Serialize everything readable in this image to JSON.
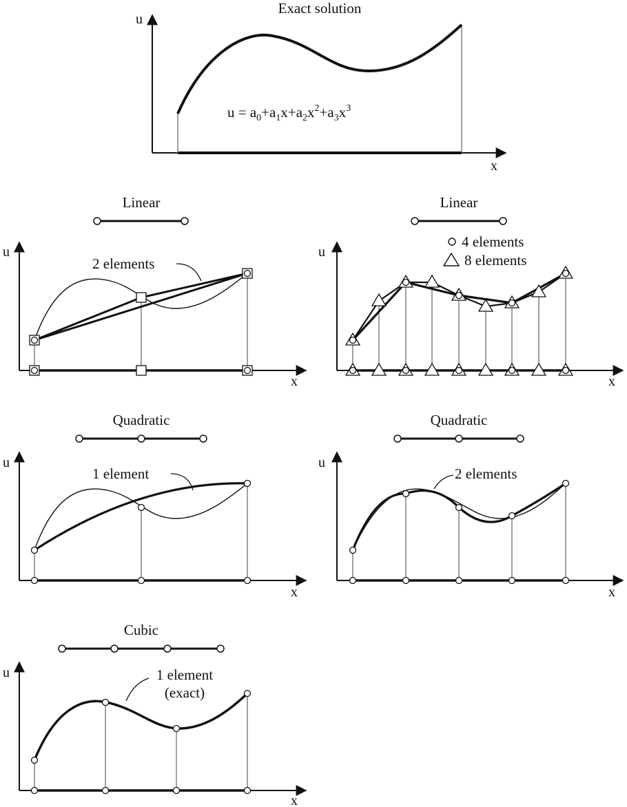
{
  "top": {
    "title": "Exact solution",
    "u_label": "u",
    "x_label": "x",
    "eq": {
      "u": "u",
      "eqsign": " = ",
      "t0": "a",
      "s0": "0",
      "p1": "+",
      "t1": "a",
      "s1": "1",
      "x1": "x",
      "p2": "+",
      "t2": "a",
      "s2": "2",
      "x2": "x",
      "e2": "2",
      "p3": "+",
      "t3": "a",
      "s3": "3",
      "x3": "x",
      "e3": "3"
    }
  },
  "linear_left": {
    "title": "Linear",
    "annotation": "2 elements",
    "u_label": "u",
    "x_label": "x"
  },
  "linear_right": {
    "title": "Linear",
    "legend_circle": "4 elements",
    "legend_triangle": "8 elements",
    "u_label": "u",
    "x_label": "x"
  },
  "quad_left": {
    "title": "Quadratic",
    "annotation": "1 element",
    "u_label": "u",
    "x_label": "x"
  },
  "quad_right": {
    "title": "Quadratic",
    "annotation": "2 elements",
    "u_label": "u",
    "x_label": "x"
  },
  "cubic": {
    "title": "Cubic",
    "annotation_line1": "1 element",
    "annotation_line2": "(exact)",
    "u_label": "u",
    "x_label": "x"
  },
  "colors": {
    "ink": "#111111",
    "node_fill": "#ffffff",
    "thin_line": "#777777"
  }
}
